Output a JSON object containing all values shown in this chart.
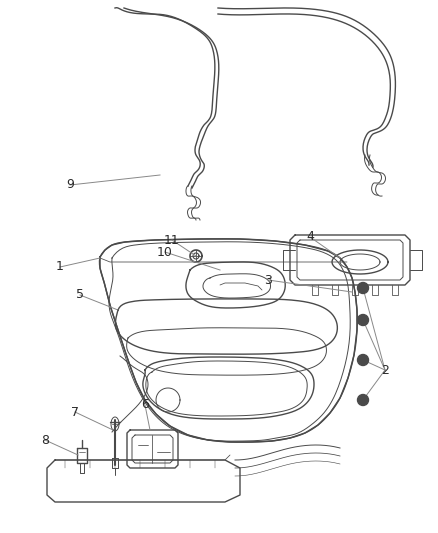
{
  "bg_color": "#ffffff",
  "line_color": "#4a4a4a",
  "label_color": "#2a2a2a",
  "leader_color": "#888888",
  "fig_width": 4.38,
  "fig_height": 5.33,
  "dpi": 100
}
